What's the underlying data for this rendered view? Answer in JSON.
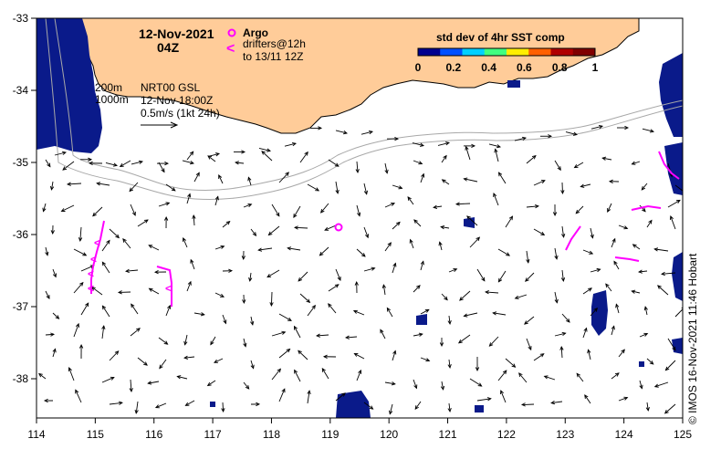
{
  "map": {
    "date_label": "12-Nov-2021",
    "time_label": "04Z",
    "legend": {
      "argo_label": "Argo",
      "drifters_line1": "drifters@12h",
      "drifters_line2": "to 13/11 12Z",
      "argo_color": "#ff00ff",
      "drifter_color": "#ff00ff"
    },
    "colorbar": {
      "title": "std dev of 4hr SST comp",
      "ticks": [
        "0",
        "0.2",
        "0.4",
        "0.6",
        "0.8",
        "1"
      ],
      "colors": [
        "#00008f",
        "#0050ff",
        "#00d0ff",
        "#40ff80",
        "#ffee00",
        "#ff6000",
        "#b00000",
        "#800000"
      ]
    },
    "info": {
      "depth1": "200m",
      "depth2": "1000m",
      "product": "NRT00 GSL",
      "valid": "12-Nov 18:00Z",
      "scale_label": "0.5m/s (1kt 24h)"
    },
    "x_ticks": [
      "114",
      "115",
      "116",
      "117",
      "118",
      "119",
      "120",
      "121",
      "122",
      "123",
      "124",
      "125"
    ],
    "y_ticks": [
      "-33",
      "-34",
      "-35",
      "-36",
      "-37",
      "-38"
    ],
    "credit": "© IMOS 16-Nov-2021 11:46 Hobart",
    "land_color": "#ffcc99",
    "data_color": "#0a1a8a"
  }
}
